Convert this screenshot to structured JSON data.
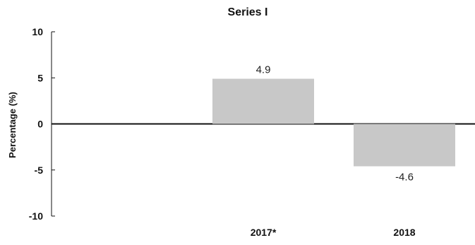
{
  "chart_data": {
    "type": "bar",
    "title": "Series I",
    "xlabel": "",
    "ylabel": "Percentage (%)",
    "categories": [
      "",
      "2017*",
      "2018"
    ],
    "values": [
      null,
      4.9,
      -4.6
    ],
    "data_labels": [
      "",
      "4.9",
      "-4.6"
    ],
    "ylim": [
      -10,
      10
    ],
    "yticks": [
      -10,
      -5,
      0,
      5,
      10
    ],
    "grid": false,
    "legend": "none",
    "bar_color": "#c8c8c8"
  }
}
